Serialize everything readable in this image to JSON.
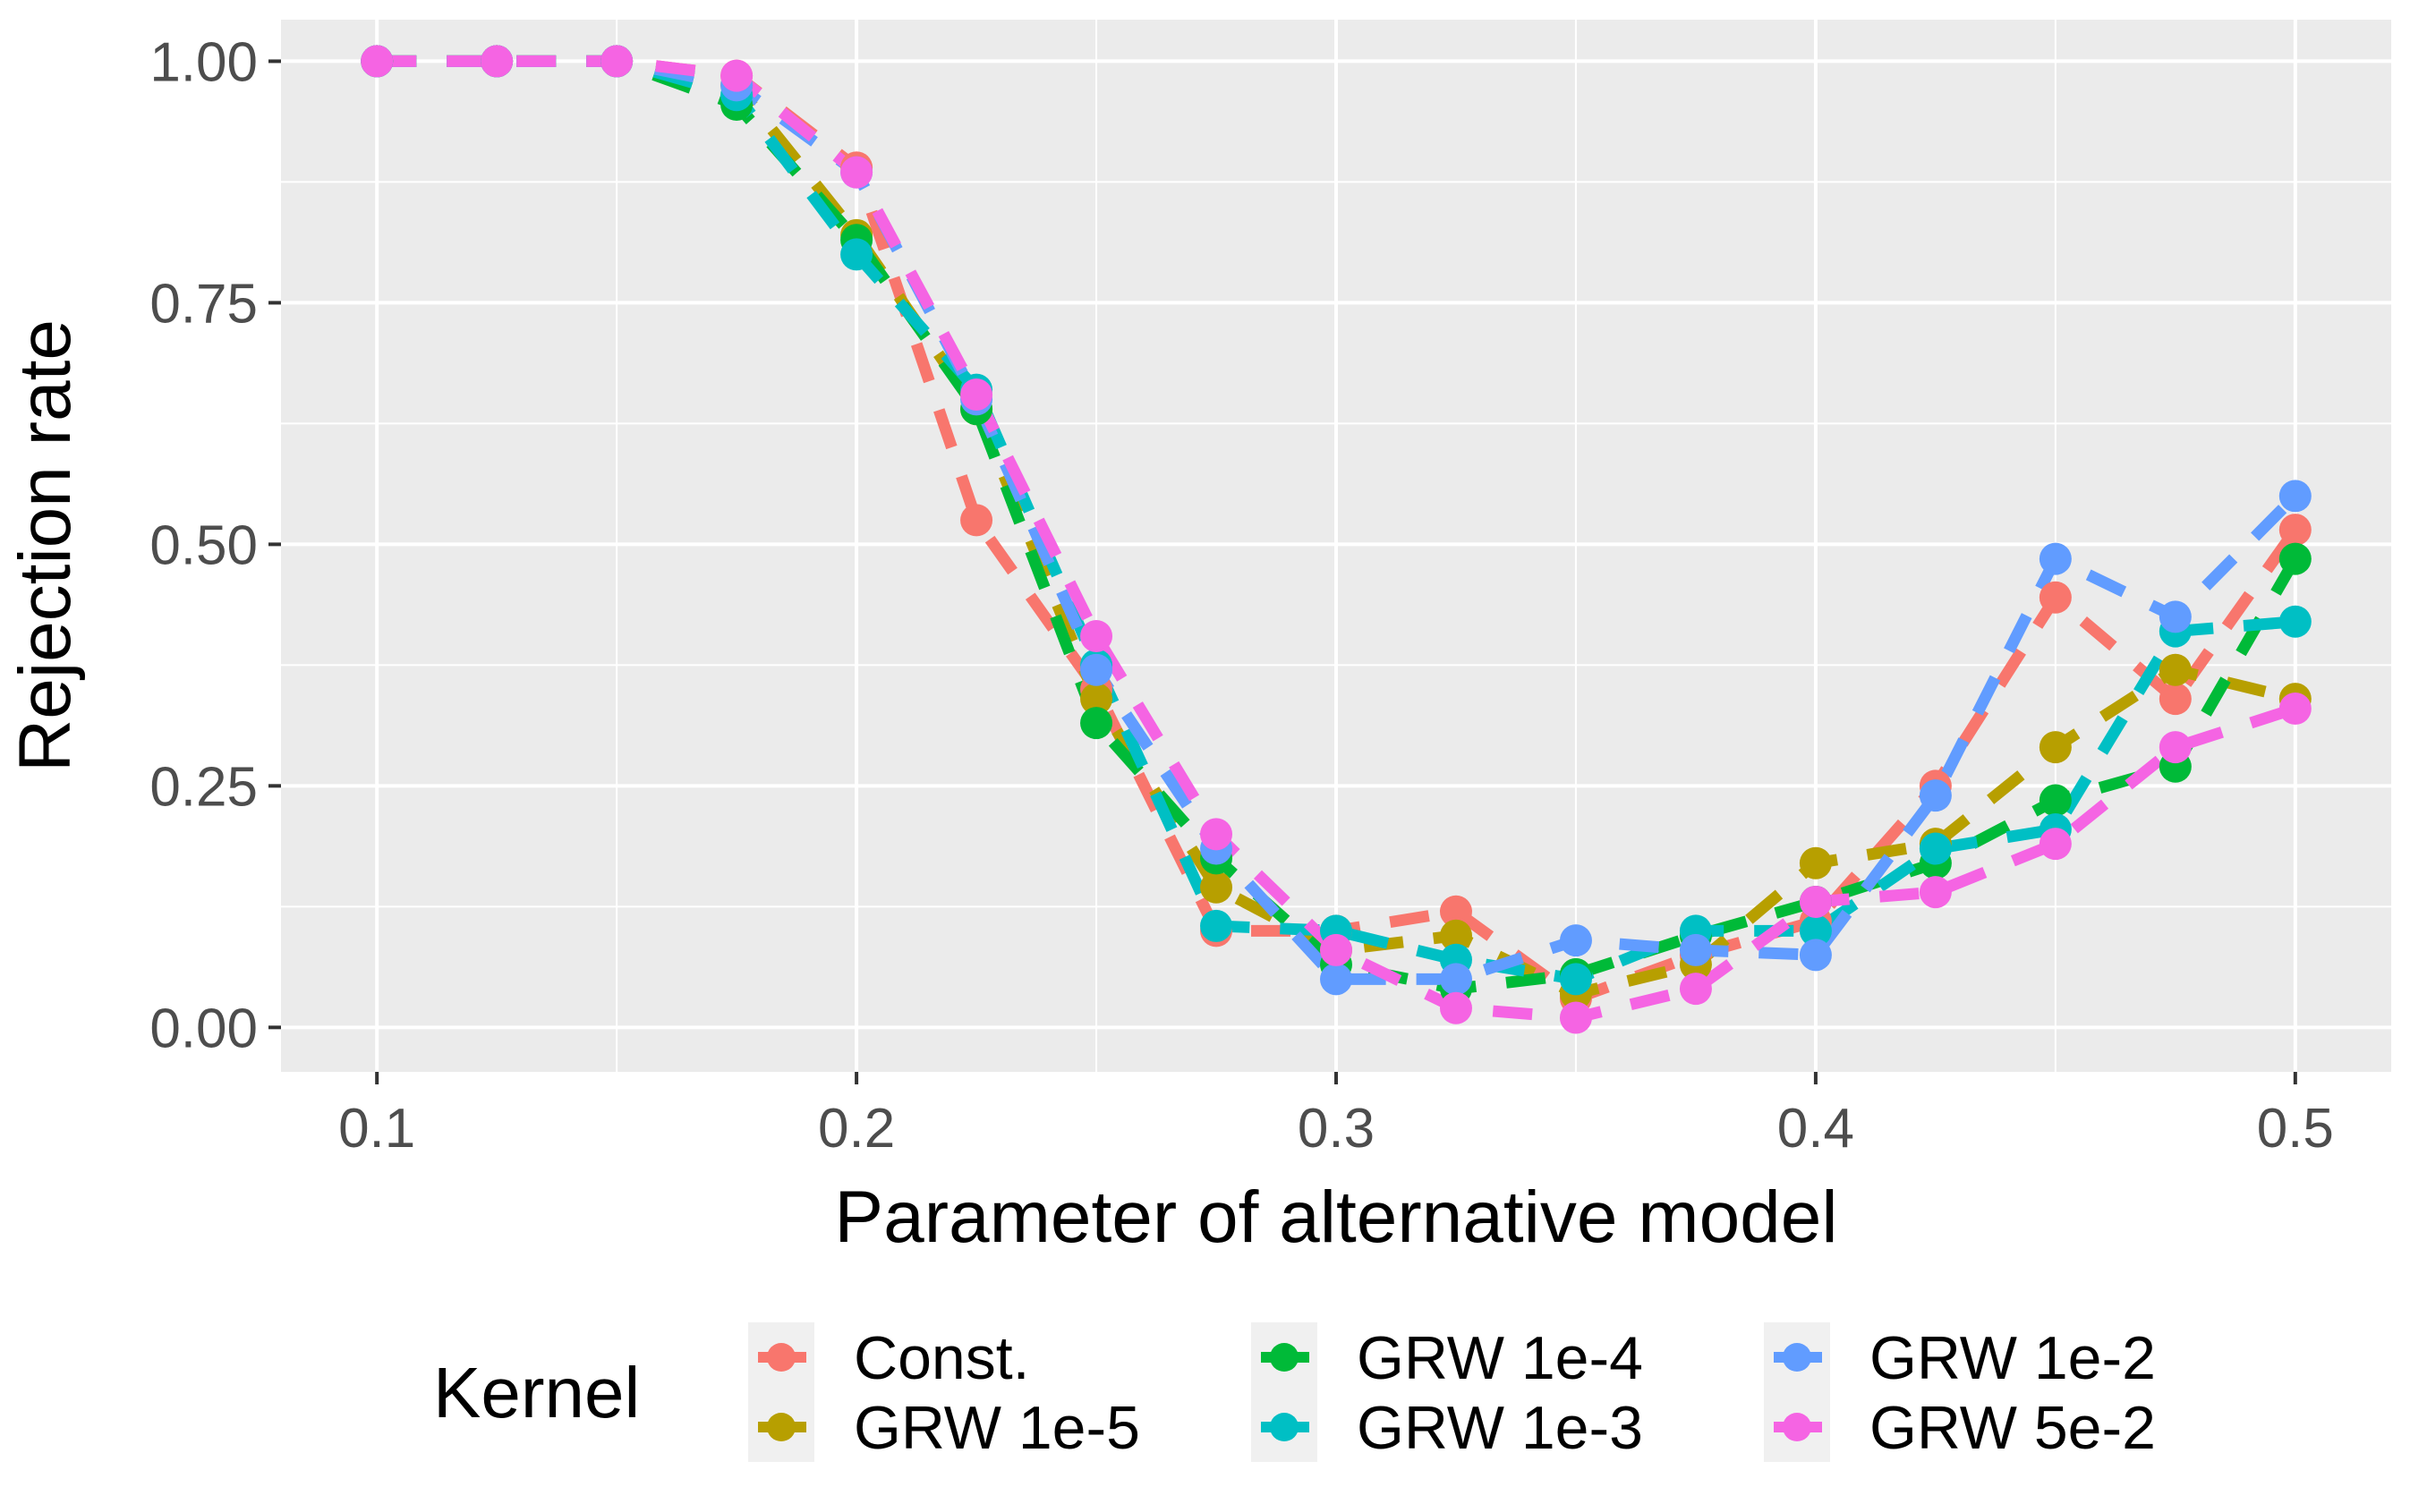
{
  "chart_data": {
    "type": "line",
    "title": "",
    "xlabel": "Parameter of alternative model",
    "ylabel": "Rejection rate",
    "legend_title": "Kernel",
    "legend_position": "bottom",
    "grid": true,
    "panel_color": "#EBEBEB",
    "gridline_color": "#FFFFFF",
    "tick_label_color": "#4D4D4D",
    "xlim": [
      0.08,
      0.52
    ],
    "ylim": [
      -0.046,
      1.043
    ],
    "x_ticks": {
      "values": [
        0.1,
        0.2,
        0.3,
        0.4,
        0.5
      ],
      "labels": [
        "0.1",
        "0.2",
        "0.3",
        "0.4",
        "0.5"
      ]
    },
    "x_minor_ticks": [
      0.15,
      0.25,
      0.35,
      0.45
    ],
    "y_ticks": {
      "values": [
        0.0,
        0.25,
        0.5,
        0.75,
        1.0
      ],
      "labels": [
        "0.00",
        "0.25",
        "0.50",
        "0.75",
        "1.00"
      ]
    },
    "y_minor_ticks": [
      0.125,
      0.375,
      0.625,
      0.875
    ],
    "line_style": "dashed",
    "marker": "circle",
    "x": [
      0.1,
      0.125,
      0.15,
      0.175,
      0.2,
      0.225,
      0.25,
      0.275,
      0.3,
      0.325,
      0.35,
      0.375,
      0.4,
      0.425,
      0.45,
      0.475,
      0.5
    ],
    "series": [
      {
        "name": "Const.",
        "color": "#F8766D",
        "values": [
          1.0,
          1.0,
          1.0,
          0.985,
          0.89,
          0.525,
          0.35,
          0.1,
          0.1,
          0.12,
          0.03,
          0.075,
          0.11,
          0.25,
          0.445,
          0.34,
          0.515
        ]
      },
      {
        "name": "GRW 1e-5",
        "color": "#B79F00",
        "values": [
          1.0,
          1.0,
          1.0,
          0.975,
          0.82,
          0.64,
          0.34,
          0.145,
          0.08,
          0.095,
          0.035,
          0.065,
          0.17,
          0.19,
          0.29,
          0.37,
          0.34
        ]
      },
      {
        "name": "GRW 1e-4",
        "color": "#00BA38",
        "values": [
          1.0,
          1.0,
          1.0,
          0.955,
          0.815,
          0.64,
          0.315,
          0.175,
          0.065,
          0.04,
          0.055,
          0.095,
          0.13,
          0.17,
          0.235,
          0.27,
          0.485
        ]
      },
      {
        "name": "GRW 1e-3",
        "color": "#00BFC4",
        "values": [
          1.0,
          1.0,
          1.0,
          0.965,
          0.8,
          0.66,
          0.375,
          0.105,
          0.1,
          0.07,
          0.05,
          0.1,
          0.1,
          0.185,
          0.205,
          0.41,
          0.42
        ]
      },
      {
        "name": "GRW 1e-2",
        "color": "#619CFF",
        "values": [
          1.0,
          1.0,
          1.0,
          0.975,
          0.885,
          0.65,
          0.37,
          0.185,
          0.05,
          0.05,
          0.09,
          0.08,
          0.075,
          0.24,
          0.485,
          0.425,
          0.55
        ]
      },
      {
        "name": "GRW 5e-2",
        "color": "#F564E3",
        "values": [
          1.0,
          1.0,
          1.0,
          0.985,
          0.885,
          0.655,
          0.405,
          0.2,
          0.08,
          0.02,
          0.01,
          0.04,
          0.13,
          0.14,
          0.19,
          0.29,
          0.33
        ]
      }
    ]
  }
}
